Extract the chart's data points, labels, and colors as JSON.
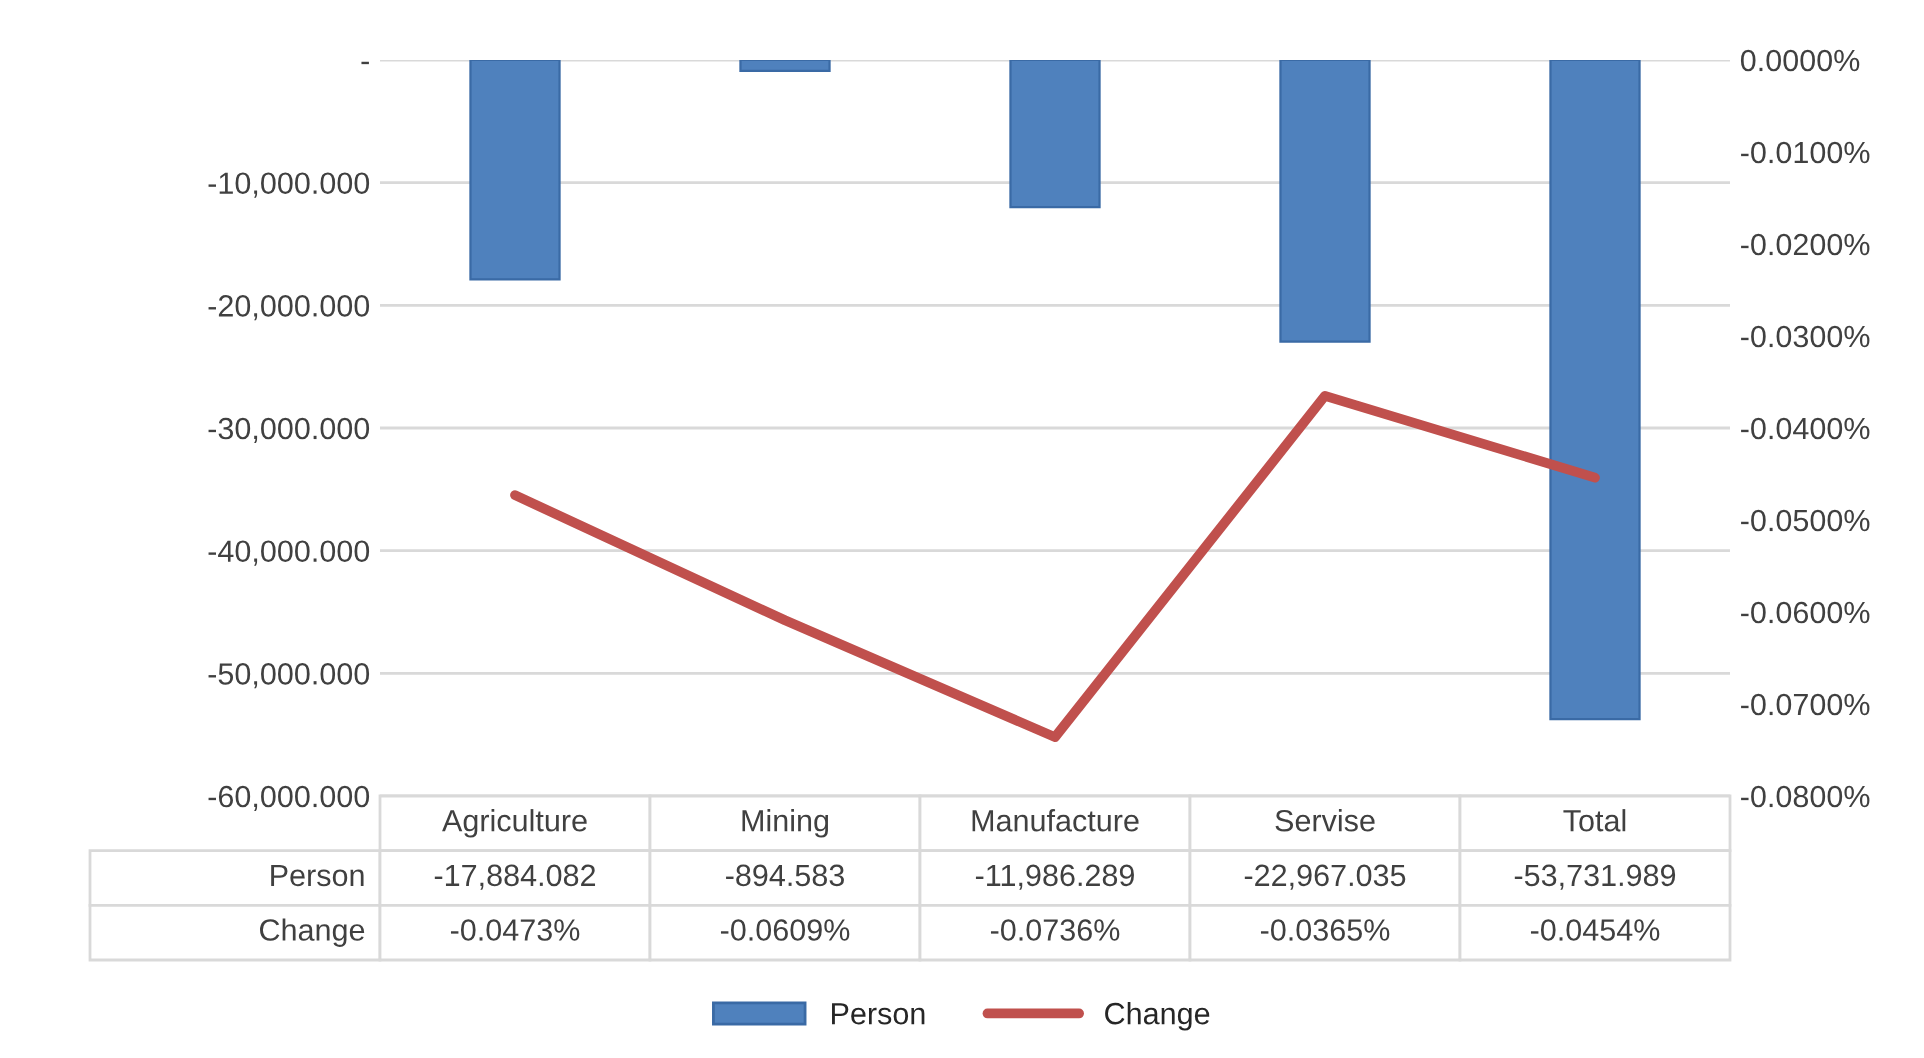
{
  "chart_data": {
    "type": "bar",
    "categories": [
      "Agriculture",
      "Mining",
      "Manufacture",
      "Servise",
      "Total"
    ],
    "series": [
      {
        "name": "Person",
        "color": "#4f81bd",
        "values": [
          -17884.082,
          -894.583,
          -11986.289,
          -22967.035,
          -53731.989
        ],
        "value_labels": [
          "-17,884.082",
          "-894.583",
          "-11,986.289",
          "-22,967.035",
          "-53,731.989"
        ]
      },
      {
        "name": "Change",
        "type": "line",
        "axis": "y2",
        "color": "#c0504d",
        "values": [
          -0.0473,
          -0.0609,
          -0.0736,
          -0.0365,
          -0.0454
        ],
        "value_labels": [
          "-0.0473%",
          "-0.0609%",
          "-0.0736%",
          "-0.0365%",
          "-0.0454%"
        ]
      }
    ],
    "ylim": [
      -60000,
      0
    ],
    "yticks": [
      {
        "value": -60000,
        "label": "-60,000.000"
      },
      {
        "value": -50000,
        "label": "-50,000.000"
      },
      {
        "value": -40000,
        "label": "-40,000.000"
      },
      {
        "value": -30000,
        "label": "-30,000.000"
      },
      {
        "value": -20000,
        "label": "-20,000.000"
      },
      {
        "value": -10000,
        "label": "-10,000.000"
      },
      {
        "value": 0,
        "label": "-"
      }
    ],
    "y2lim": [
      -0.08,
      0
    ],
    "y2ticks": [
      {
        "value": -0.08,
        "label": "-0.0800%"
      },
      {
        "value": -0.07,
        "label": "-0.0700%"
      },
      {
        "value": -0.06,
        "label": "-0.0600%"
      },
      {
        "value": -0.05,
        "label": "-0.0500%"
      },
      {
        "value": -0.04,
        "label": "-0.0400%"
      },
      {
        "value": -0.03,
        "label": "-0.0300%"
      },
      {
        "value": -0.02,
        "label": "-0.0200%"
      },
      {
        "value": -0.01,
        "label": "-0.0100%"
      },
      {
        "value": 0,
        "label": "0.0000%"
      }
    ],
    "grid": "y",
    "legend": "bottom",
    "line_style": "solid",
    "marker": "none"
  }
}
